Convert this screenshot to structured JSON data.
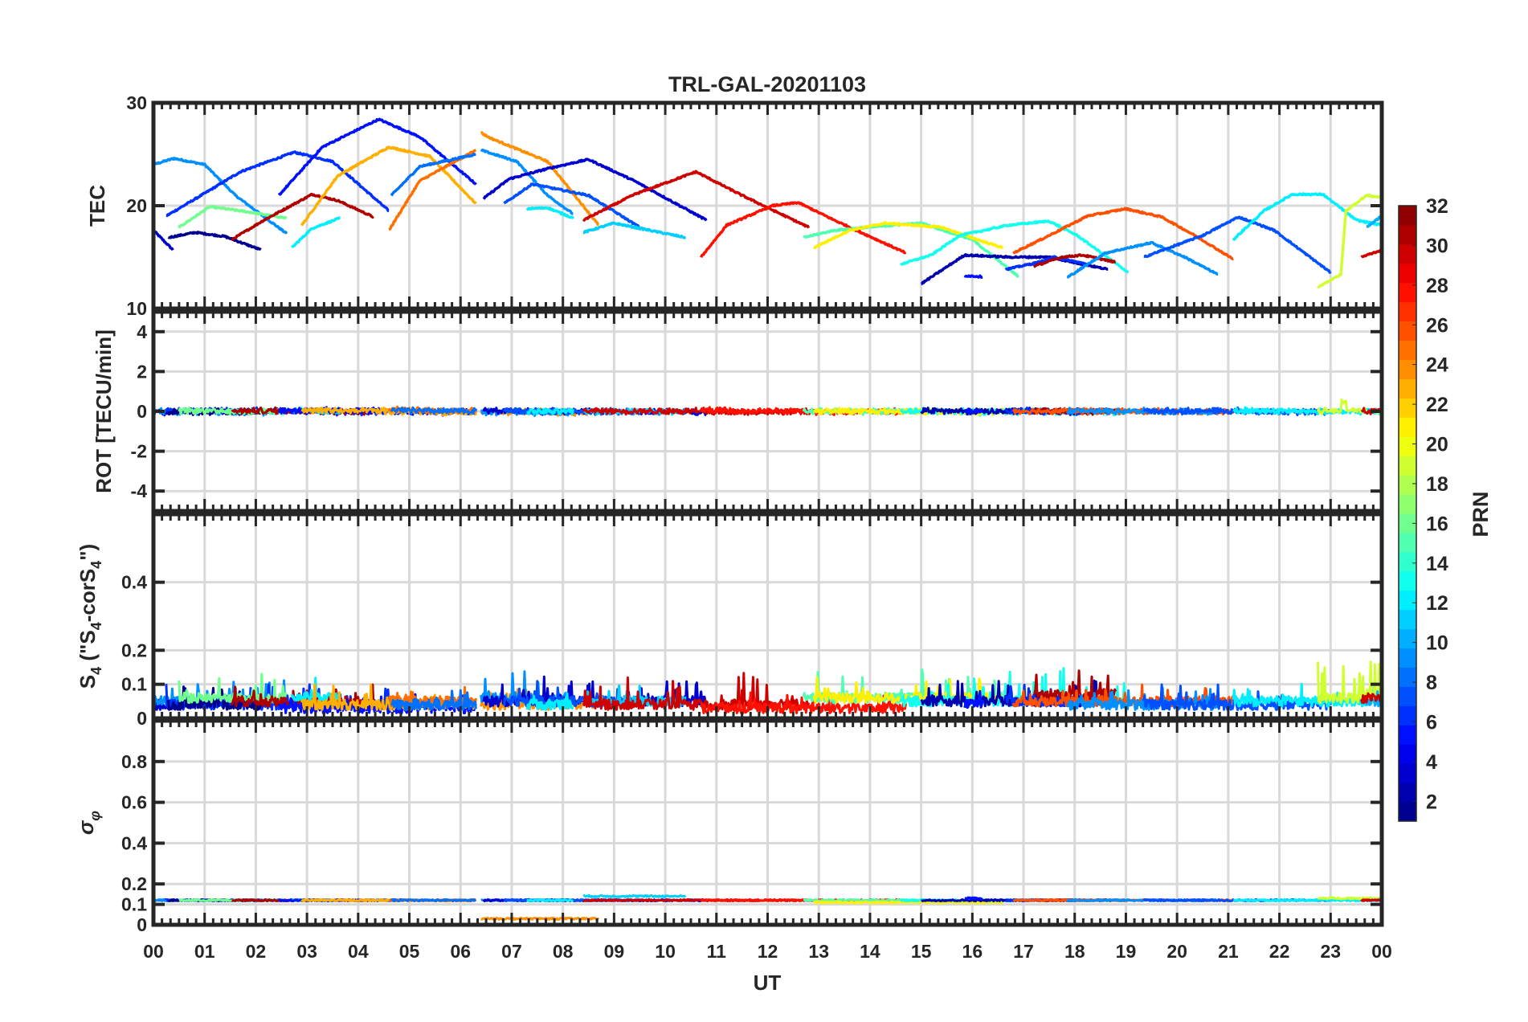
{
  "chart_data": {
    "type": "line",
    "title": "TRL-GAL-20201103",
    "xlabel": "UT",
    "x_range": [
      0,
      24
    ],
    "x_tick_labels": [
      "00",
      "01",
      "02",
      "03",
      "04",
      "05",
      "06",
      "07",
      "08",
      "09",
      "10",
      "11",
      "12",
      "13",
      "14",
      "15",
      "16",
      "17",
      "18",
      "19",
      "20",
      "21",
      "22",
      "23",
      "00"
    ],
    "grid": true,
    "colorbar": {
      "label": "PRN",
      "range": [
        1,
        32
      ],
      "tick_labels": [
        "2",
        "4",
        "6",
        "8",
        "10",
        "12",
        "14",
        "16",
        "18",
        "20",
        "22",
        "24",
        "26",
        "28",
        "30",
        "32"
      ],
      "colormap": "jet",
      "levels": 32
    },
    "panels": [
      {
        "name": "tec",
        "ylabel": "TEC",
        "ylim": [
          10,
          30
        ],
        "yticks": [
          10,
          20,
          30
        ],
        "ytick_labels": [
          "10",
          "20",
          "30"
        ]
      },
      {
        "name": "rot",
        "ylabel": "ROT [TECU/min]",
        "ylim": [
          -5,
          5
        ],
        "yticks": [
          -4,
          -2,
          0,
          2,
          4
        ],
        "ytick_labels": [
          "-4",
          "-2",
          "0",
          "2",
          "4"
        ]
      },
      {
        "name": "s4",
        "ylabel_main": "S",
        "ylabel_sub": "4",
        "ylabel_rest1": " (\"S",
        "ylabel_sub2": "4",
        "ylabel_rest2": "-corS",
        "ylabel_sub3": "4",
        "ylabel_rest3": "\")",
        "ylim": [
          0,
          0.6
        ],
        "yticks": [
          0,
          0.1,
          0.2,
          0.4
        ],
        "ytick_labels": [
          "0",
          "0.1",
          "0.2",
          "0.4"
        ]
      },
      {
        "name": "sigma",
        "ylabel_main": "σ",
        "ylabel_sub": "φ",
        "ylim": [
          0,
          1
        ],
        "yticks": [
          0,
          0.1,
          0.2,
          0.4,
          0.6,
          0.8
        ],
        "ytick_labels": [
          "0",
          "0.1",
          "0.2",
          "0.4",
          "0.6",
          "0.8"
        ]
      }
    ],
    "series": [
      {
        "prn": 3,
        "tec": [
          [
            0,
            17.6
          ],
          [
            0.38,
            15.7
          ]
        ],
        "s4": [
          0.04,
          0.08
        ],
        "sigma": 0.12
      },
      {
        "prn": 9,
        "tec": [
          [
            0,
            24.0
          ],
          [
            0.4,
            24.6
          ],
          [
            1.0,
            24.0
          ],
          [
            1.6,
            21.0
          ],
          [
            2.6,
            17.3
          ]
        ],
        "s4": [
          0.05,
          0.12
        ],
        "sigma": 0.12
      },
      {
        "prn": 6,
        "tec": [
          [
            0.25,
            19.0
          ],
          [
            1.0,
            21.2
          ],
          [
            1.7,
            23.3
          ],
          [
            2.75,
            25.2
          ],
          [
            3.5,
            24.3
          ],
          [
            4.6,
            19.5
          ]
        ],
        "s4": [
          0.04,
          0.1
        ],
        "sigma": 0.12
      },
      {
        "prn": 1,
        "tec": [
          [
            0.29,
            16.9
          ],
          [
            0.82,
            17.4
          ],
          [
            1.4,
            17.0
          ],
          [
            2.1,
            15.7
          ]
        ],
        "s4": [
          0.04,
          0.09
        ],
        "sigma": 0.12
      },
      {
        "prn": 16,
        "tec": [
          [
            0.5,
            17.9
          ],
          [
            1.1,
            19.9
          ],
          [
            1.7,
            19.5
          ],
          [
            2.6,
            18.8
          ]
        ],
        "s4": [
          0.06,
          0.13
        ],
        "sigma": 0.12
      },
      {
        "prn": 31,
        "tec": [
          [
            1.53,
            16.7
          ],
          [
            2.16,
            18.6
          ],
          [
            3.1,
            21.1
          ],
          [
            3.6,
            20.5
          ],
          [
            4.3,
            18.9
          ]
        ],
        "s4": [
          0.05,
          0.1
        ],
        "sigma": 0.12
      },
      {
        "prn": 12,
        "tec": [
          [
            2.7,
            15.9
          ],
          [
            3.1,
            17.8
          ],
          [
            3.65,
            18.8
          ]
        ],
        "s4": [
          0.06,
          0.14
        ],
        "sigma": 0.12
      },
      {
        "prn": 5,
        "tec": [
          [
            2.45,
            21.0
          ],
          [
            3.3,
            25.7
          ],
          [
            4.4,
            28.4
          ],
          [
            5.2,
            26.7
          ],
          [
            6.3,
            22.1
          ]
        ],
        "s4": [
          0.03,
          0.06
        ],
        "sigma": 0.12
      },
      {
        "prn": 23,
        "tec": [
          [
            2.9,
            18.1
          ],
          [
            3.6,
            22.9
          ],
          [
            4.6,
            25.7
          ],
          [
            5.4,
            24.8
          ],
          [
            6.3,
            20.2
          ]
        ],
        "s4": [
          0.04,
          0.09
        ],
        "sigma": 0.12
      },
      {
        "prn": 25,
        "tec": [
          [
            4.6,
            17.6
          ],
          [
            5.2,
            22.4
          ],
          [
            6.3,
            25.4
          ]
        ],
        "s4": [
          0.05,
          0.09
        ],
        "sigma": 0.12
      },
      {
        "prn": 8,
        "tec": [
          [
            4.65,
            21.0
          ],
          [
            5.2,
            23.8
          ],
          [
            6.3,
            25.0
          ]
        ],
        "s4": [
          0.04,
          0.08
        ],
        "sigma": 0.12
      },
      {
        "prn": 24,
        "tec": [
          [
            6.4,
            27.1
          ],
          [
            6.57,
            26.6
          ],
          [
            7.7,
            24.3
          ],
          [
            8.7,
            18.1
          ]
        ],
        "s4": [
          0.04,
          0.08
        ],
        "sigma": 0.03
      },
      {
        "prn": 9,
        "tec": [
          [
            6.4,
            25.4
          ],
          [
            7.1,
            24.3
          ],
          [
            7.7,
            21.0
          ],
          [
            8.2,
            19.2
          ]
        ],
        "s4": [
          0.06,
          0.15
        ],
        "sigma": 0.12
      },
      {
        "prn": 3,
        "tec": [
          [
            6.45,
            20.7
          ],
          [
            6.95,
            22.6
          ],
          [
            7.7,
            23.6
          ],
          [
            8.5,
            24.5
          ],
          [
            9.4,
            22.4
          ],
          [
            10.8,
            18.6
          ]
        ],
        "s4": [
          0.05,
          0.12
        ],
        "sigma": 0.12
      },
      {
        "prn": 7,
        "tec": [
          [
            6.85,
            20.2
          ],
          [
            7.4,
            22.1
          ],
          [
            8.5,
            21.0
          ],
          [
            9.5,
            17.9
          ]
        ],
        "s4": [
          0.05,
          0.11
        ],
        "sigma": 0.12
      },
      {
        "prn": 12,
        "tec": [
          [
            7.3,
            19.7
          ],
          [
            7.7,
            19.8
          ],
          [
            8.2,
            18.8
          ]
        ],
        "s4": [
          0.04,
          0.09
        ],
        "sigma": 0.12
      },
      {
        "prn": 11,
        "tec": [
          [
            8.4,
            17.4
          ],
          [
            9.0,
            18.3
          ],
          [
            9.7,
            17.6
          ],
          [
            10.4,
            16.9
          ]
        ],
        "s4": [
          0.05,
          0.1
        ],
        "sigma": 0.14
      },
      {
        "prn": 30,
        "tec": [
          [
            8.4,
            18.6
          ],
          [
            9.4,
            21.1
          ],
          [
            10.6,
            23.3
          ],
          [
            11.5,
            21.0
          ],
          [
            12.8,
            17.9
          ]
        ],
        "s4": [
          0.04,
          0.14
        ],
        "sigma": 0.12
      },
      {
        "prn": 28,
        "tec": [
          [
            10.7,
            15.0
          ],
          [
            11.2,
            18.1
          ],
          [
            12.1,
            20.0
          ],
          [
            12.6,
            20.3
          ],
          [
            13.3,
            18.6
          ],
          [
            14.7,
            15.4
          ]
        ],
        "s4": [
          0.03,
          0.07
        ],
        "sigma": 0.12
      },
      {
        "prn": 15,
        "tec": [
          [
            12.7,
            16.9
          ],
          [
            13.3,
            17.6
          ],
          [
            14.2,
            18.0
          ],
          [
            15.0,
            18.3
          ],
          [
            16.0,
            16.7
          ],
          [
            16.9,
            13.1
          ]
        ],
        "s4": [
          0.06,
          0.14
        ],
        "sigma": 0.12
      },
      {
        "prn": 21,
        "tec": [
          [
            12.9,
            15.9
          ],
          [
            13.6,
            17.6
          ],
          [
            14.3,
            18.3
          ],
          [
            15.4,
            17.9
          ],
          [
            16.1,
            16.7
          ],
          [
            16.6,
            15.9
          ]
        ],
        "s4": [
          0.06,
          0.13
        ],
        "sigma": 0.11
      },
      {
        "prn": 13,
        "tec": [
          [
            14.6,
            14.3
          ],
          [
            15.2,
            15.2
          ],
          [
            15.75,
            17.1
          ],
          [
            16.7,
            18.1
          ],
          [
            17.5,
            18.5
          ],
          [
            18.05,
            17.1
          ],
          [
            19.05,
            13.5
          ]
        ],
        "s4": [
          0.05,
          0.15
        ],
        "sigma": 0.12
      },
      {
        "prn": 2,
        "tec": [
          [
            15.0,
            12.4
          ],
          [
            15.85,
            15.2
          ],
          [
            16.7,
            15.0
          ],
          [
            17.5,
            15.0
          ],
          [
            18.65,
            13.8
          ]
        ],
        "s4": [
          0.05,
          0.11
        ],
        "sigma": 0.12
      },
      {
        "prn": 5,
        "tec": [
          [
            15.85,
            13.2
          ],
          [
            16.2,
            13.1
          ]
        ],
        "s4": [
          0.04,
          0.08
        ],
        "sigma": 0.13
      },
      {
        "prn": 6,
        "tec": [
          [
            16.65,
            13.8
          ],
          [
            17.3,
            14.5
          ],
          [
            17.6,
            15.0
          ],
          [
            18.25,
            14.3
          ]
        ],
        "s4": [
          0.05,
          0.1
        ],
        "sigma": 0.12
      },
      {
        "prn": 31,
        "tec": [
          [
            17.2,
            14.1
          ],
          [
            17.75,
            15.0
          ],
          [
            18.15,
            15.2
          ],
          [
            18.8,
            14.5
          ]
        ],
        "s4": [
          0.07,
          0.14
        ],
        "sigma": 0.12
      },
      {
        "prn": 26,
        "tec": [
          [
            16.8,
            15.4
          ],
          [
            17.5,
            17.1
          ],
          [
            18.25,
            19.0
          ],
          [
            19.0,
            19.7
          ],
          [
            19.7,
            18.9
          ],
          [
            20.35,
            17.1
          ],
          [
            21.1,
            14.8
          ]
        ],
        "s4": [
          0.05,
          0.1
        ],
        "sigma": 0.12
      },
      {
        "prn": 9,
        "tec": [
          [
            17.85,
            13.0
          ],
          [
            18.6,
            15.4
          ],
          [
            19.5,
            16.4
          ],
          [
            20.15,
            15.0
          ],
          [
            20.8,
            13.3
          ]
        ],
        "s4": [
          0.04,
          0.08
        ],
        "sigma": 0.12
      },
      {
        "prn": 7,
        "tec": [
          [
            19.35,
            15.0
          ],
          [
            20.5,
            17.1
          ],
          [
            21.2,
            18.9
          ],
          [
            21.9,
            17.6
          ],
          [
            23.0,
            13.5
          ]
        ],
        "s4": [
          0.04,
          0.09
        ],
        "sigma": 0.12
      },
      {
        "prn": 12,
        "tec": [
          [
            21.1,
            16.7
          ],
          [
            21.7,
            19.5
          ],
          [
            22.25,
            21.1
          ],
          [
            22.85,
            21.1
          ],
          [
            23.5,
            18.6
          ],
          [
            24.0,
            18.1
          ]
        ],
        "s4": [
          0.05,
          0.1
        ],
        "sigma": 0.12
      },
      {
        "prn": 19,
        "tec": [
          [
            22.75,
            12.1
          ],
          [
            23.2,
            13.3
          ],
          [
            23.3,
            19.5
          ],
          [
            23.7,
            21.0
          ],
          [
            24.0,
            20.8
          ]
        ],
        "s4": [
          0.06,
          0.17
        ],
        "sigma": 0.13
      },
      {
        "prn": 10,
        "tec": [
          [
            23.7,
            17.9
          ],
          [
            24.0,
            19.0
          ]
        ],
        "s4": [
          0.05,
          0.1
        ],
        "sigma": 0.12
      },
      {
        "prn": 30,
        "tec": [
          [
            23.6,
            15.0
          ],
          [
            24.0,
            15.7
          ]
        ],
        "s4": [
          0.06,
          0.1
        ],
        "sigma": 0.12
      }
    ]
  }
}
